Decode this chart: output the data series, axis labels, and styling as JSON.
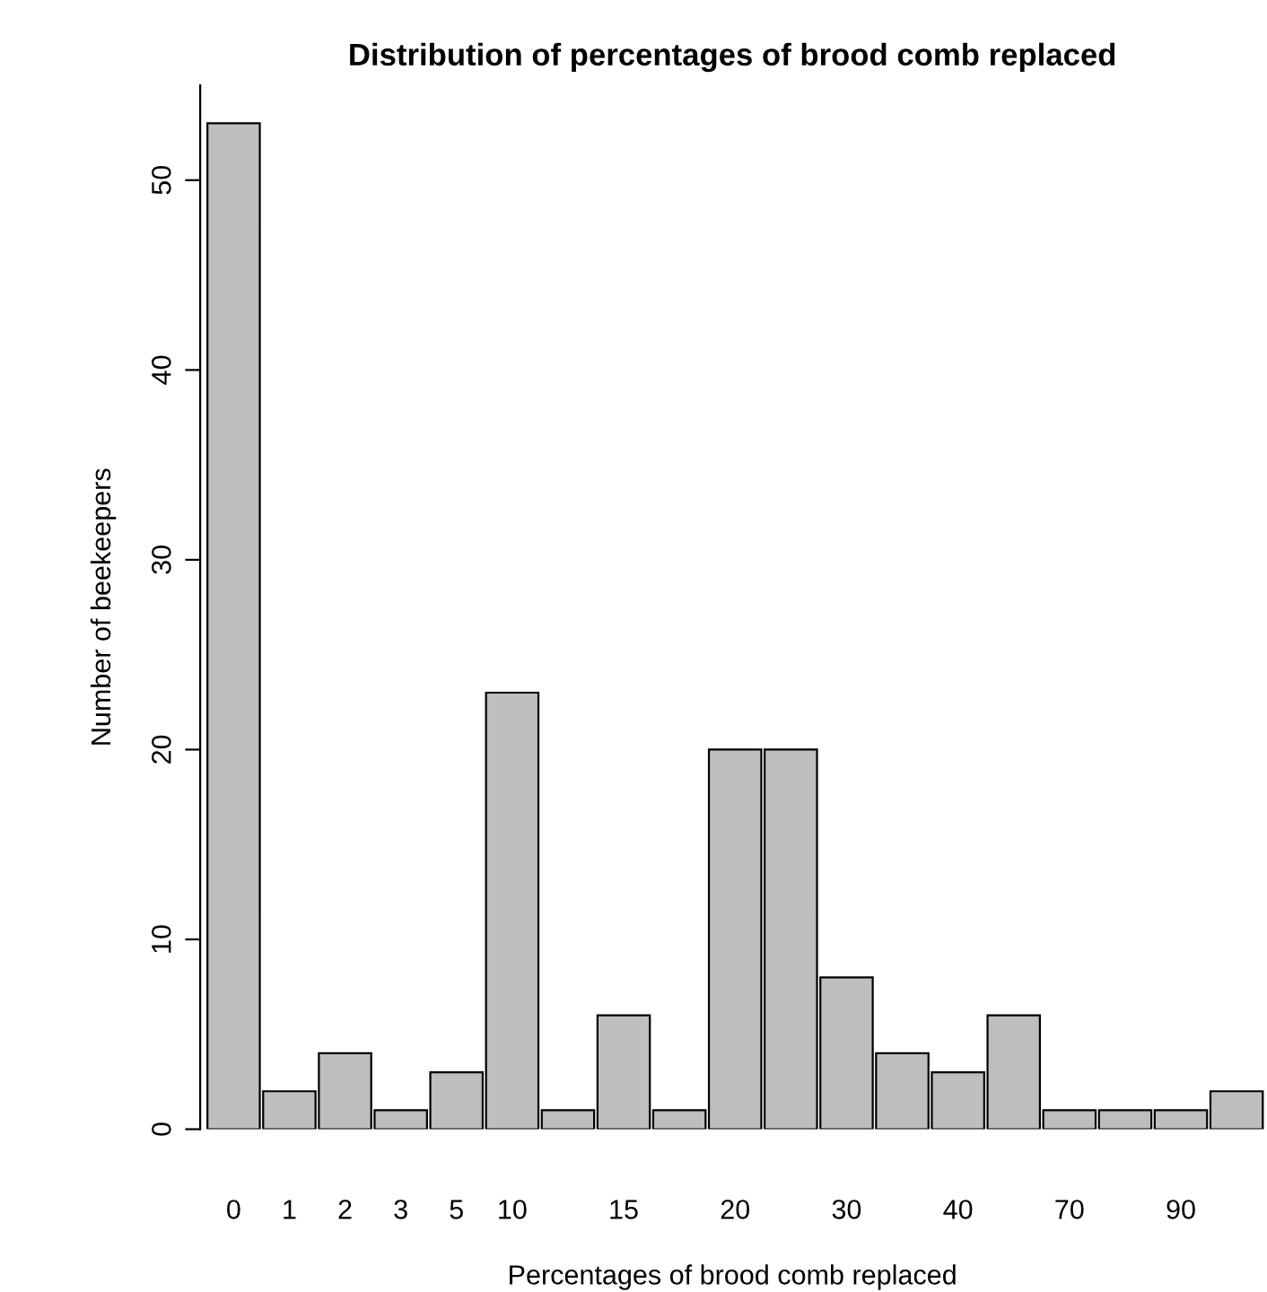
{
  "chart_data": {
    "type": "bar",
    "title": "Distribution of percentages of brood comb replaced",
    "xlabel": "Percentages of brood comb replaced",
    "ylabel": "Number of beekeepers",
    "categories": [
      "0",
      "1",
      "2",
      "3",
      "5",
      "10",
      null,
      "15",
      null,
      "20",
      null,
      "30",
      null,
      "40",
      null,
      "70",
      null,
      "90",
      null
    ],
    "values": [
      53,
      2,
      4,
      1,
      3,
      23,
      1,
      6,
      1,
      20,
      20,
      8,
      4,
      3,
      6,
      1,
      1,
      1,
      2
    ],
    "color": "#bebebe",
    "ylim": [
      0,
      55
    ],
    "yticks": [
      0,
      10,
      20,
      30,
      40,
      50
    ],
    "grid": false,
    "legend": false
  }
}
